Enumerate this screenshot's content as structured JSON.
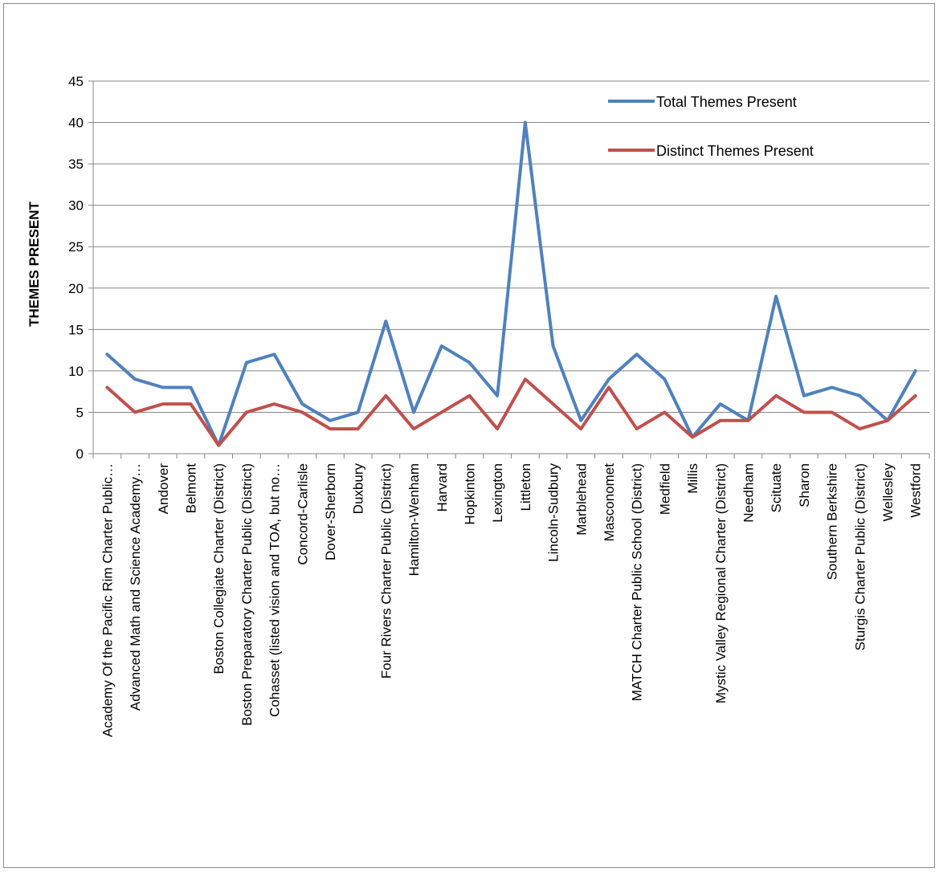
{
  "chart_data": {
    "type": "line",
    "title": "",
    "xlabel": "",
    "ylabel": "THEMES PRESENT",
    "ylim": [
      0,
      45
    ],
    "y_ticks": [
      0,
      5,
      10,
      15,
      20,
      25,
      30,
      35,
      40,
      45
    ],
    "grid": "horizontal",
    "legend_position": "top-right",
    "categories": [
      "Academy Of the Pacific Rim Charter Public…",
      "Advanced Math and Science Academy…",
      "Andover",
      "Belmont",
      "Boston Collegiate Charter (District)",
      "Boston Preparatory Charter Public (District)",
      "Cohasset (listed vision and TOA, but no…",
      "Concord-Carlisle",
      "Dover-Sherborn",
      "Duxbury",
      "Four Rivers Charter Public (District)",
      "Hamilton-Wenham",
      "Harvard",
      "Hopkinton",
      "Lexington",
      "Littleton",
      "Lincoln-Sudbury",
      "Marblehead",
      "Masconomet",
      "MATCH Charter Public School (District)",
      "Medfield",
      "Millis",
      "Mystic Valley Regional Charter (District)",
      "Needham",
      "Scituate",
      "Sharon",
      "Southern Berkshire",
      "Sturgis Charter Public (District)",
      "Wellesley",
      "Westford"
    ],
    "series": [
      {
        "name": "Total Themes Present",
        "color": "#4f81bd",
        "values": [
          12,
          9,
          8,
          8,
          1,
          11,
          12,
          6,
          4,
          5,
          16,
          5,
          13,
          11,
          7,
          40,
          13,
          4,
          9,
          12,
          9,
          2,
          6,
          4,
          19,
          7,
          8,
          7,
          4,
          10
        ]
      },
      {
        "name": "Distinct Themes Present",
        "color": "#c0504d",
        "values": [
          8,
          5,
          6,
          6,
          1,
          5,
          6,
          5,
          3,
          3,
          7,
          3,
          5,
          7,
          3,
          9,
          6,
          3,
          8,
          3,
          5,
          2,
          4,
          4,
          7,
          5,
          5,
          3,
          4,
          7
        ]
      }
    ]
  }
}
